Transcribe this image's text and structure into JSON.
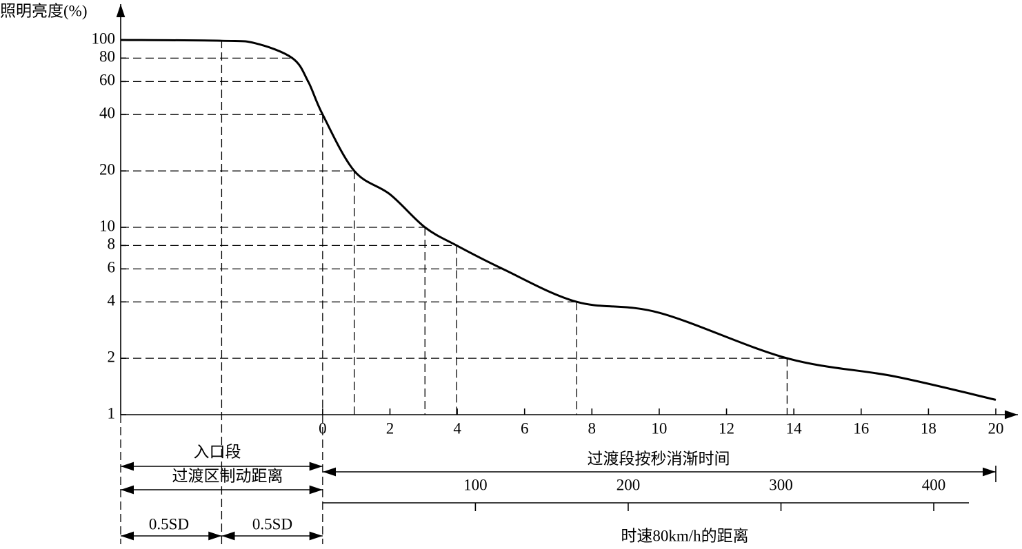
{
  "chart_data": {
    "type": "line",
    "y_label": "照明亮度(%)",
    "log_y": true,
    "color": "#000000",
    "xlim": [
      -6,
      20
    ],
    "ylim": [
      1,
      100
    ],
    "xticks": [
      0,
      2,
      4,
      6,
      8,
      10,
      12,
      14,
      16,
      18,
      20
    ],
    "yticks": [
      1,
      2,
      4,
      6,
      8,
      10,
      20,
      40,
      60,
      80,
      100
    ],
    "x": [
      -6,
      -3,
      -2,
      -0.9,
      -0.43,
      0,
      0.94,
      2,
      3.04,
      3.98,
      5.35,
      7.55,
      10,
      13.8,
      17,
      20
    ],
    "values": [
      100,
      99,
      96,
      80,
      60,
      40,
      20,
      15,
      10,
      8,
      6,
      4,
      3.5,
      2,
      1.6,
      1.2
    ],
    "guides": [
      {
        "x": -0.9,
        "y": 80,
        "drop": false
      },
      {
        "x": -0.43,
        "y": 60,
        "drop": false
      },
      {
        "x": 0,
        "y": 40,
        "drop": true
      },
      {
        "x": 0.94,
        "y": 20,
        "drop": true
      },
      {
        "x": 3.04,
        "y": 10,
        "drop": true
      },
      {
        "x": 3.98,
        "y": 8,
        "drop": true
      },
      {
        "x": 5.35,
        "y": 6,
        "drop": false
      },
      {
        "x": 7.55,
        "y": 4,
        "drop": true
      },
      {
        "x": 13.8,
        "y": 2,
        "drop": true
      }
    ],
    "x2_label": "时速80km/h的距离",
    "x2lim": [
      0,
      423
    ],
    "x2ticks": [
      100,
      200,
      300,
      400
    ],
    "annotations": {
      "entrance_zone": "入口段",
      "braking_distance": "过渡区制动距离",
      "half_sd": "0.5SD",
      "transition_time": "过渡段按秒消渐时间"
    }
  }
}
